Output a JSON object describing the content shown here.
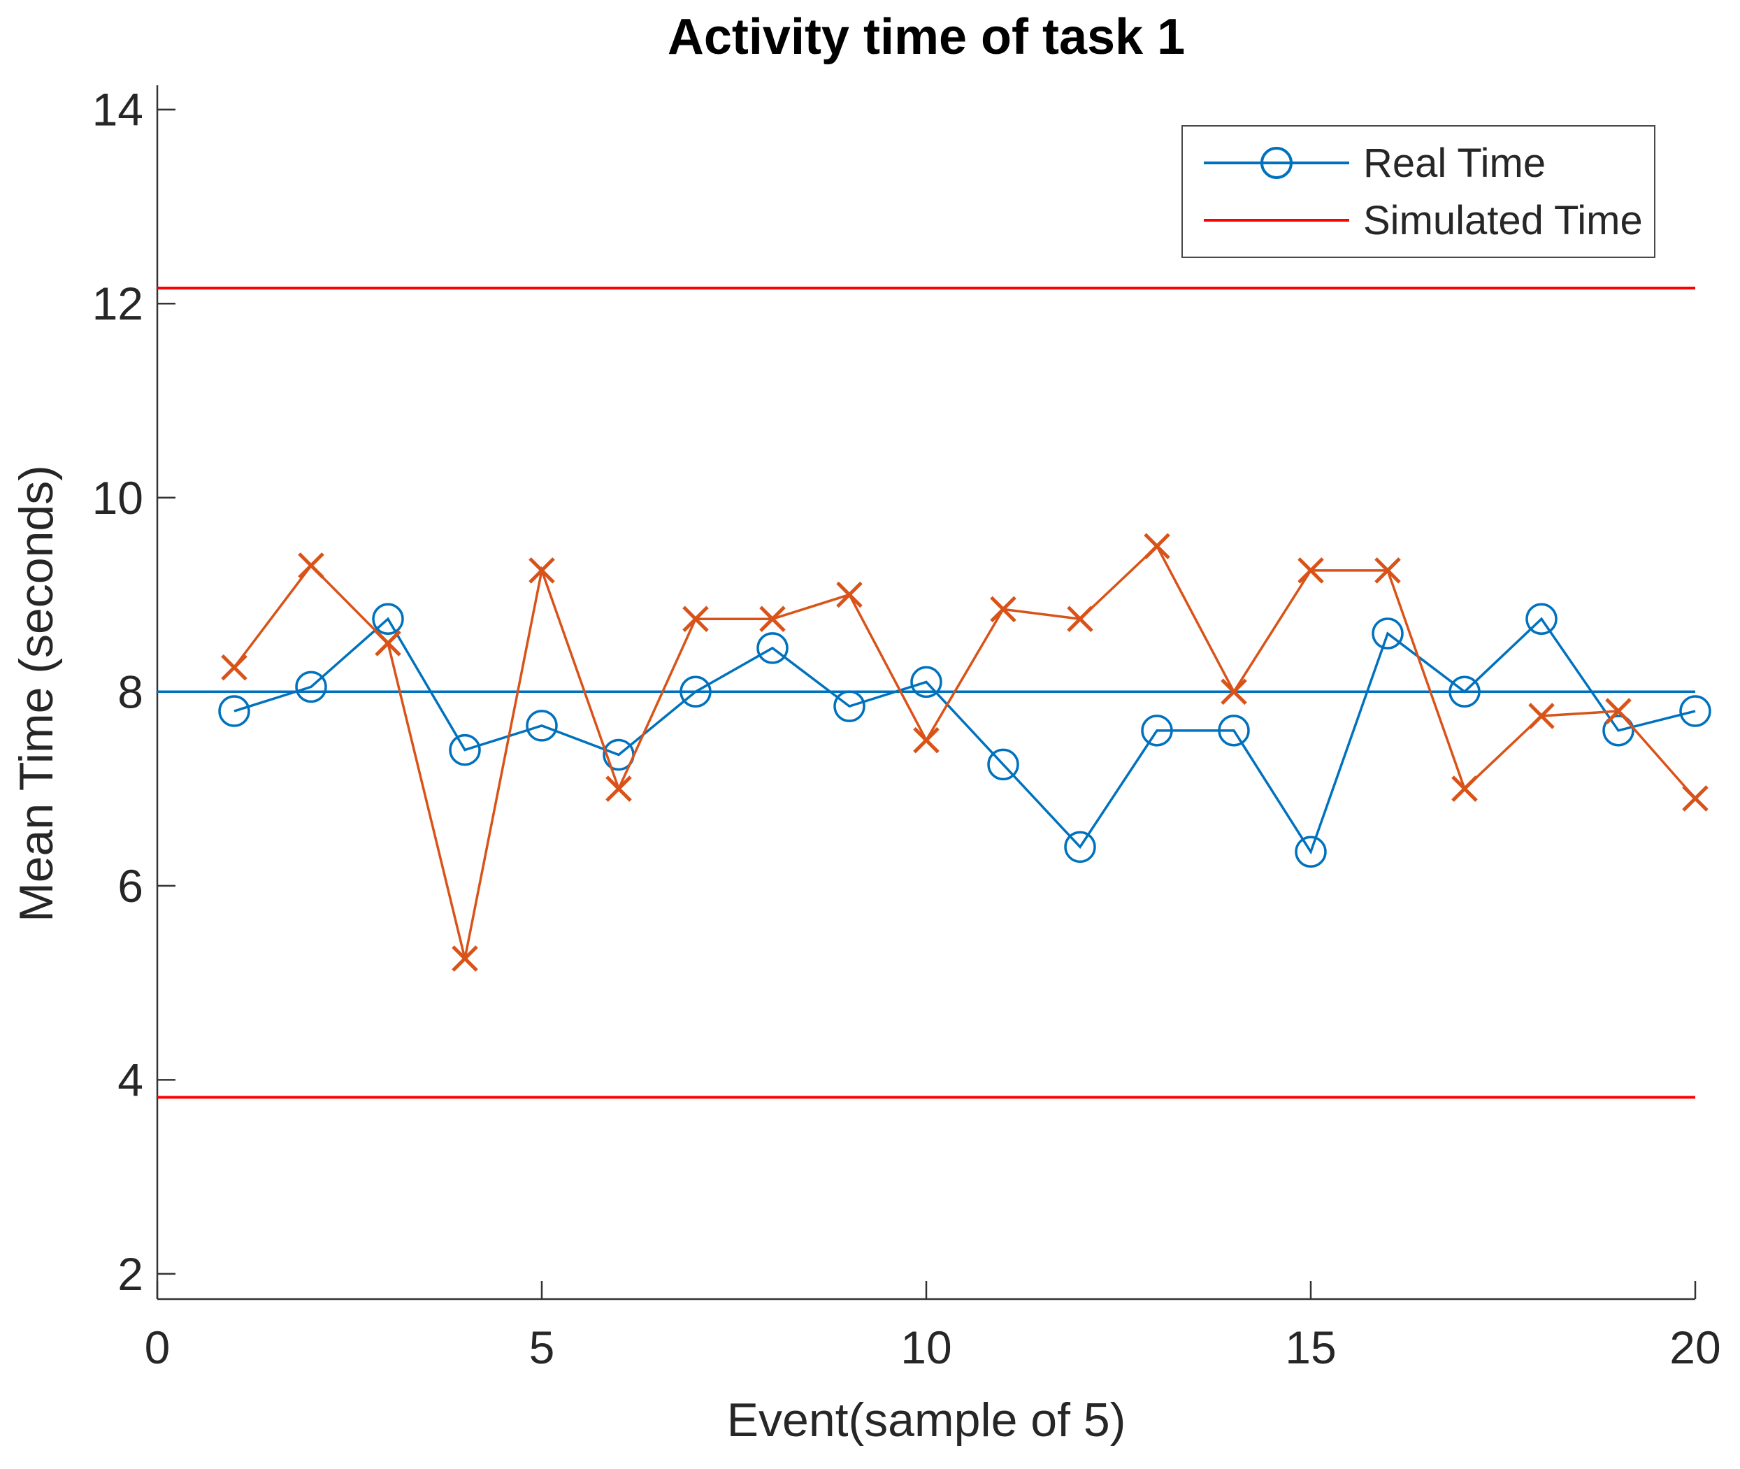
{
  "chart_data": {
    "type": "line",
    "title": "Activity time of task 1",
    "xlabel": "Event(sample of 5)",
    "ylabel": "Mean Time (seconds)",
    "xlim": [
      0,
      20
    ],
    "ylim": [
      1.74,
      14.25
    ],
    "x_ticks": [
      0,
      5,
      10,
      15,
      20
    ],
    "y_ticks": [
      2,
      4,
      6,
      8,
      10,
      12,
      14
    ],
    "grid": false,
    "legend_position": "top-right",
    "axis_color": "#333333",
    "text_color": "#262626",
    "x": [
      1,
      2,
      3,
      4,
      5,
      6,
      7,
      8,
      9,
      10,
      11,
      12,
      13,
      14,
      15,
      16,
      17,
      18,
      19,
      20
    ],
    "series": [
      {
        "name": "Real Time",
        "data_name": "real-time-series",
        "color": "#0072BD",
        "marker": "circle",
        "values": [
          7.8,
          8.05,
          8.75,
          7.4,
          7.65,
          7.35,
          8.0,
          8.45,
          7.85,
          8.1,
          7.25,
          6.4,
          7.6,
          7.6,
          6.35,
          8.6,
          8.0,
          8.75,
          7.6,
          7.8
        ]
      },
      {
        "name": "",
        "data_name": "orange-x-series",
        "color": "#D95319",
        "marker": "x",
        "values": [
          8.25,
          9.3,
          8.5,
          5.25,
          9.25,
          7.0,
          8.75,
          8.75,
          9.0,
          7.5,
          8.85,
          8.75,
          9.5,
          8.0,
          9.25,
          9.25,
          7.0,
          7.75,
          7.8,
          6.9
        ]
      }
    ],
    "reference_lines": [
      {
        "name": "center-line",
        "value": 8.0,
        "color": "#0072BD",
        "width": 3.5
      },
      {
        "name": "upper-limit-line",
        "value": 12.16,
        "color": "#FF0000",
        "width": 4
      },
      {
        "name": "lower-limit-line",
        "value": 3.82,
        "color": "#FF0000",
        "width": 4
      }
    ],
    "legend": [
      {
        "label": "Real Time",
        "color": "#0072BD",
        "marker": "circle"
      },
      {
        "label": "Simulated Time",
        "color": "#FF0000",
        "marker": "none"
      }
    ]
  }
}
